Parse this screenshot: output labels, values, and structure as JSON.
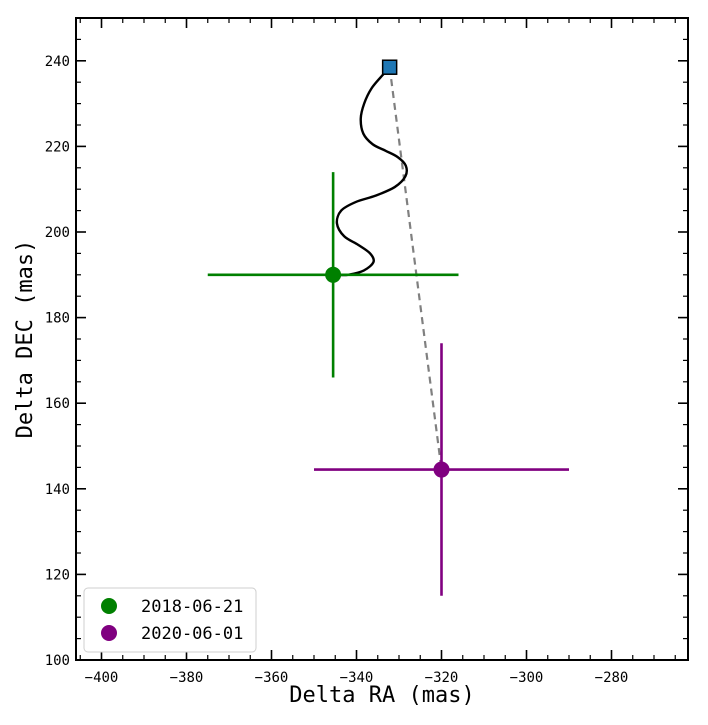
{
  "chart_data": {
    "type": "scatter",
    "xlabel": "Delta RA (mas)",
    "ylabel": "Delta DEC (mas)",
    "xlim": [
      -406,
      -262
    ],
    "ylim": [
      100,
      250
    ],
    "x_ticks": [
      -400,
      -380,
      -360,
      -340,
      -320,
      -300,
      -280
    ],
    "x_tick_labels": [
      "−400",
      "−380",
      "−360",
      "−340",
      "−320",
      "−300",
      "−280"
    ],
    "y_ticks": [
      100,
      120,
      140,
      160,
      180,
      200,
      220,
      240
    ],
    "y_tick_labels": [
      "100",
      "120",
      "140",
      "160",
      "180",
      "200",
      "220",
      "240"
    ],
    "legend_position": "bottom-left",
    "series": [
      {
        "name": "2018-06-21",
        "color": "#008000",
        "x": -345.5,
        "y": 190.0,
        "x_err": 29.5,
        "y_err": 24.0
      },
      {
        "name": "2020-06-01",
        "color": "#800080",
        "x": -320.0,
        "y": 144.5,
        "x_err": 30.0,
        "y_err": 29.5
      }
    ],
    "orbit_track": {
      "color": "#000000",
      "x": [
        -332.2,
        -334,
        -336.5,
        -338.2,
        -339.0,
        -338.4,
        -336.2,
        -333.2,
        -330.3,
        -328.4,
        -328.5,
        -331.0,
        -335.5,
        -340.2,
        -343.6,
        -344.6,
        -342.9,
        -339.6,
        -336.8,
        -336.0,
        -338.3,
        -342.0,
        -344.3
      ],
      "y": [
        238.5,
        236.5,
        233.5,
        230,
        226.5,
        223,
        220.5,
        219,
        217.5,
        215.5,
        213,
        210.5,
        208.5,
        207,
        205,
        202,
        199,
        197,
        195,
        193,
        191,
        190,
        190
      ]
    },
    "reference_marker": {
      "marker": "square",
      "color": "#1f77b4",
      "x": -332.2,
      "y": 238.5
    },
    "connector": {
      "style": "dashed",
      "color": "#808080",
      "from": [
        -332.2,
        238.5
      ],
      "to": [
        -320.0,
        144.5
      ]
    }
  }
}
